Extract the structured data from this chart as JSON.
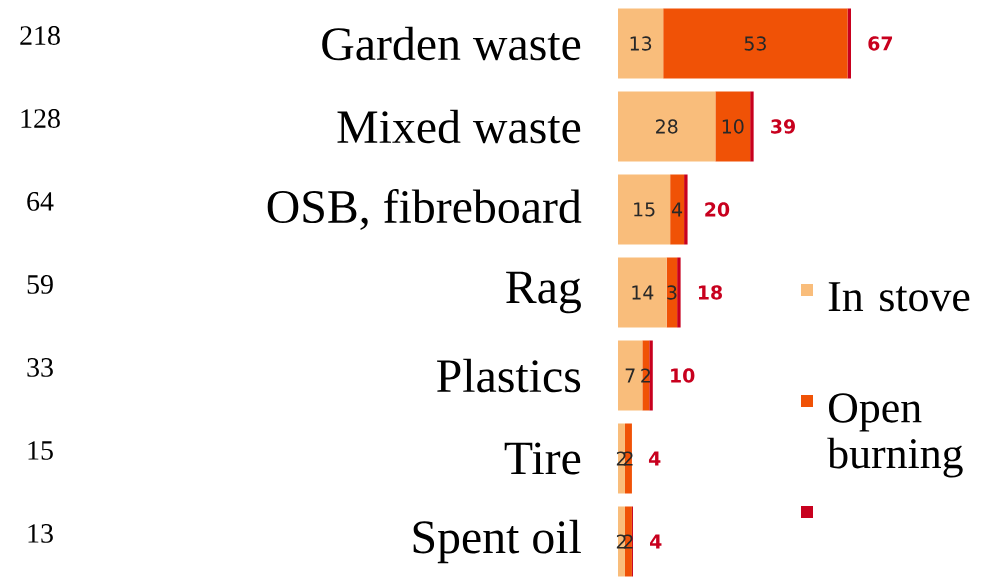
{
  "chart_data": {
    "type": "bar",
    "orientation": "horizontal",
    "stacked": true,
    "categories": [
      "Garden waste",
      "Mixed waste",
      "OSB, fibreboard",
      "Rag",
      "Plastics",
      "Tire",
      "Spent oil"
    ],
    "series": [
      {
        "name": "In stove",
        "color": "#f9bd7b",
        "values": [
          13,
          28,
          15,
          14,
          7,
          2,
          2
        ],
        "value_labels": [
          "13",
          "28",
          "15",
          "14",
          "7",
          "2",
          "2"
        ]
      },
      {
        "name": "Open burning",
        "color": "#f05206",
        "values": [
          53,
          10,
          4,
          3,
          2,
          2,
          2
        ],
        "value_labels": [
          "53",
          "10",
          "4",
          "3",
          "2",
          "2",
          "2"
        ]
      },
      {
        "color": "#c8001e",
        "values": [
          1,
          1,
          1,
          1,
          1,
          0,
          0.3
        ]
      }
    ],
    "totals": [
      "67",
      "39",
      "20",
      "18",
      "10",
      "4",
      "4"
    ],
    "annotations": [
      "218",
      "128",
      "64",
      "59",
      "33",
      "15",
      "13"
    ],
    "legend": "bottom right"
  }
}
